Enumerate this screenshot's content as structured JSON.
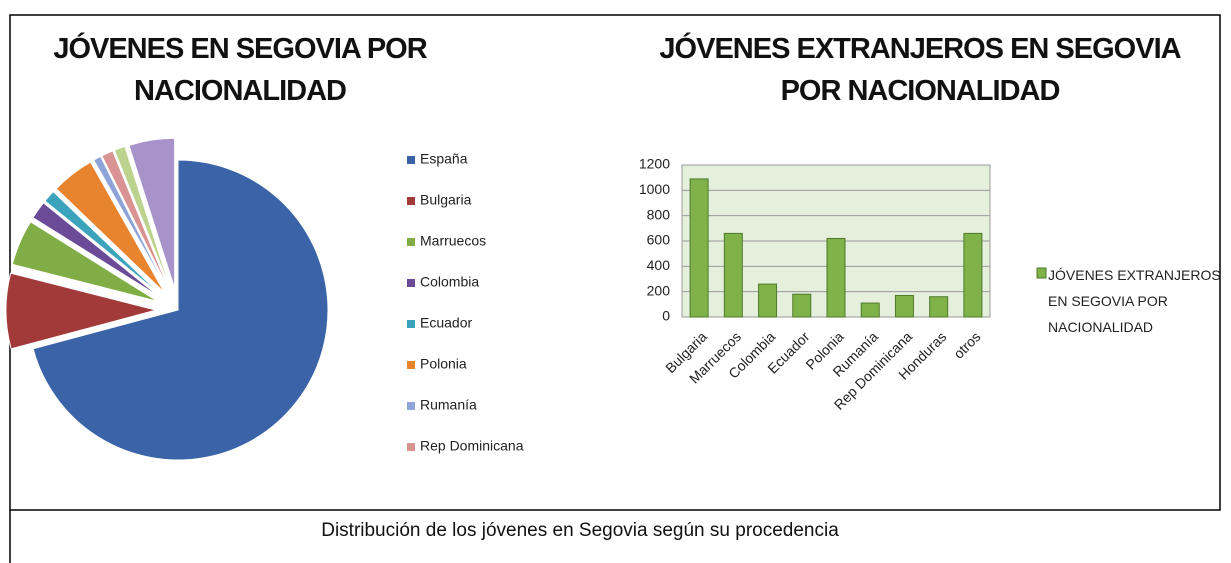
{
  "chart_data": [
    {
      "type": "pie",
      "title": "JÓVENES EN SEGOVIA POR NACIONALIDAD",
      "categories": [
        "España",
        "Bulgaria",
        "Marruecos",
        "Colombia",
        "Ecuador",
        "Polonia",
        "Rumanía",
        "Rep Dominicana",
        null,
        null
      ],
      "values": [
        9500,
        1090,
        660,
        260,
        180,
        620,
        110,
        170,
        160,
        660
      ],
      "colors": [
        "#3b64a8",
        "#a23a3a",
        "#80ad46",
        "#6b4b98",
        "#3ba3bb",
        "#e8832e",
        "#8ea3d8",
        "#d99393",
        "#bcd38e",
        "#a892ca"
      ]
    },
    {
      "type": "bar",
      "title": "JÓVENES EXTRANJEROS EN SEGOVIA POR NACIONALIDAD",
      "categories": [
        "Bulgaria",
        "Marruecos",
        "Colombia",
        "Ecuador",
        "Polonia",
        "Rumanía",
        "Rep Dominicana",
        "Honduras",
        "otros"
      ],
      "series": [
        {
          "name": "JÓVENES EXTRANJEROS EN SEGOVIA POR NACIONALIDAD",
          "color": "#7fb34a",
          "values": [
            1090,
            660,
            260,
            180,
            620,
            110,
            170,
            160,
            660
          ]
        }
      ],
      "ylim": [
        0,
        1200
      ],
      "yticks": [
        0,
        200,
        400,
        600,
        800,
        1000,
        1200
      ],
      "grid": true,
      "legend": "right"
    }
  ],
  "caption": "Distribución de los jóvenes en Segovia según su procedencia"
}
